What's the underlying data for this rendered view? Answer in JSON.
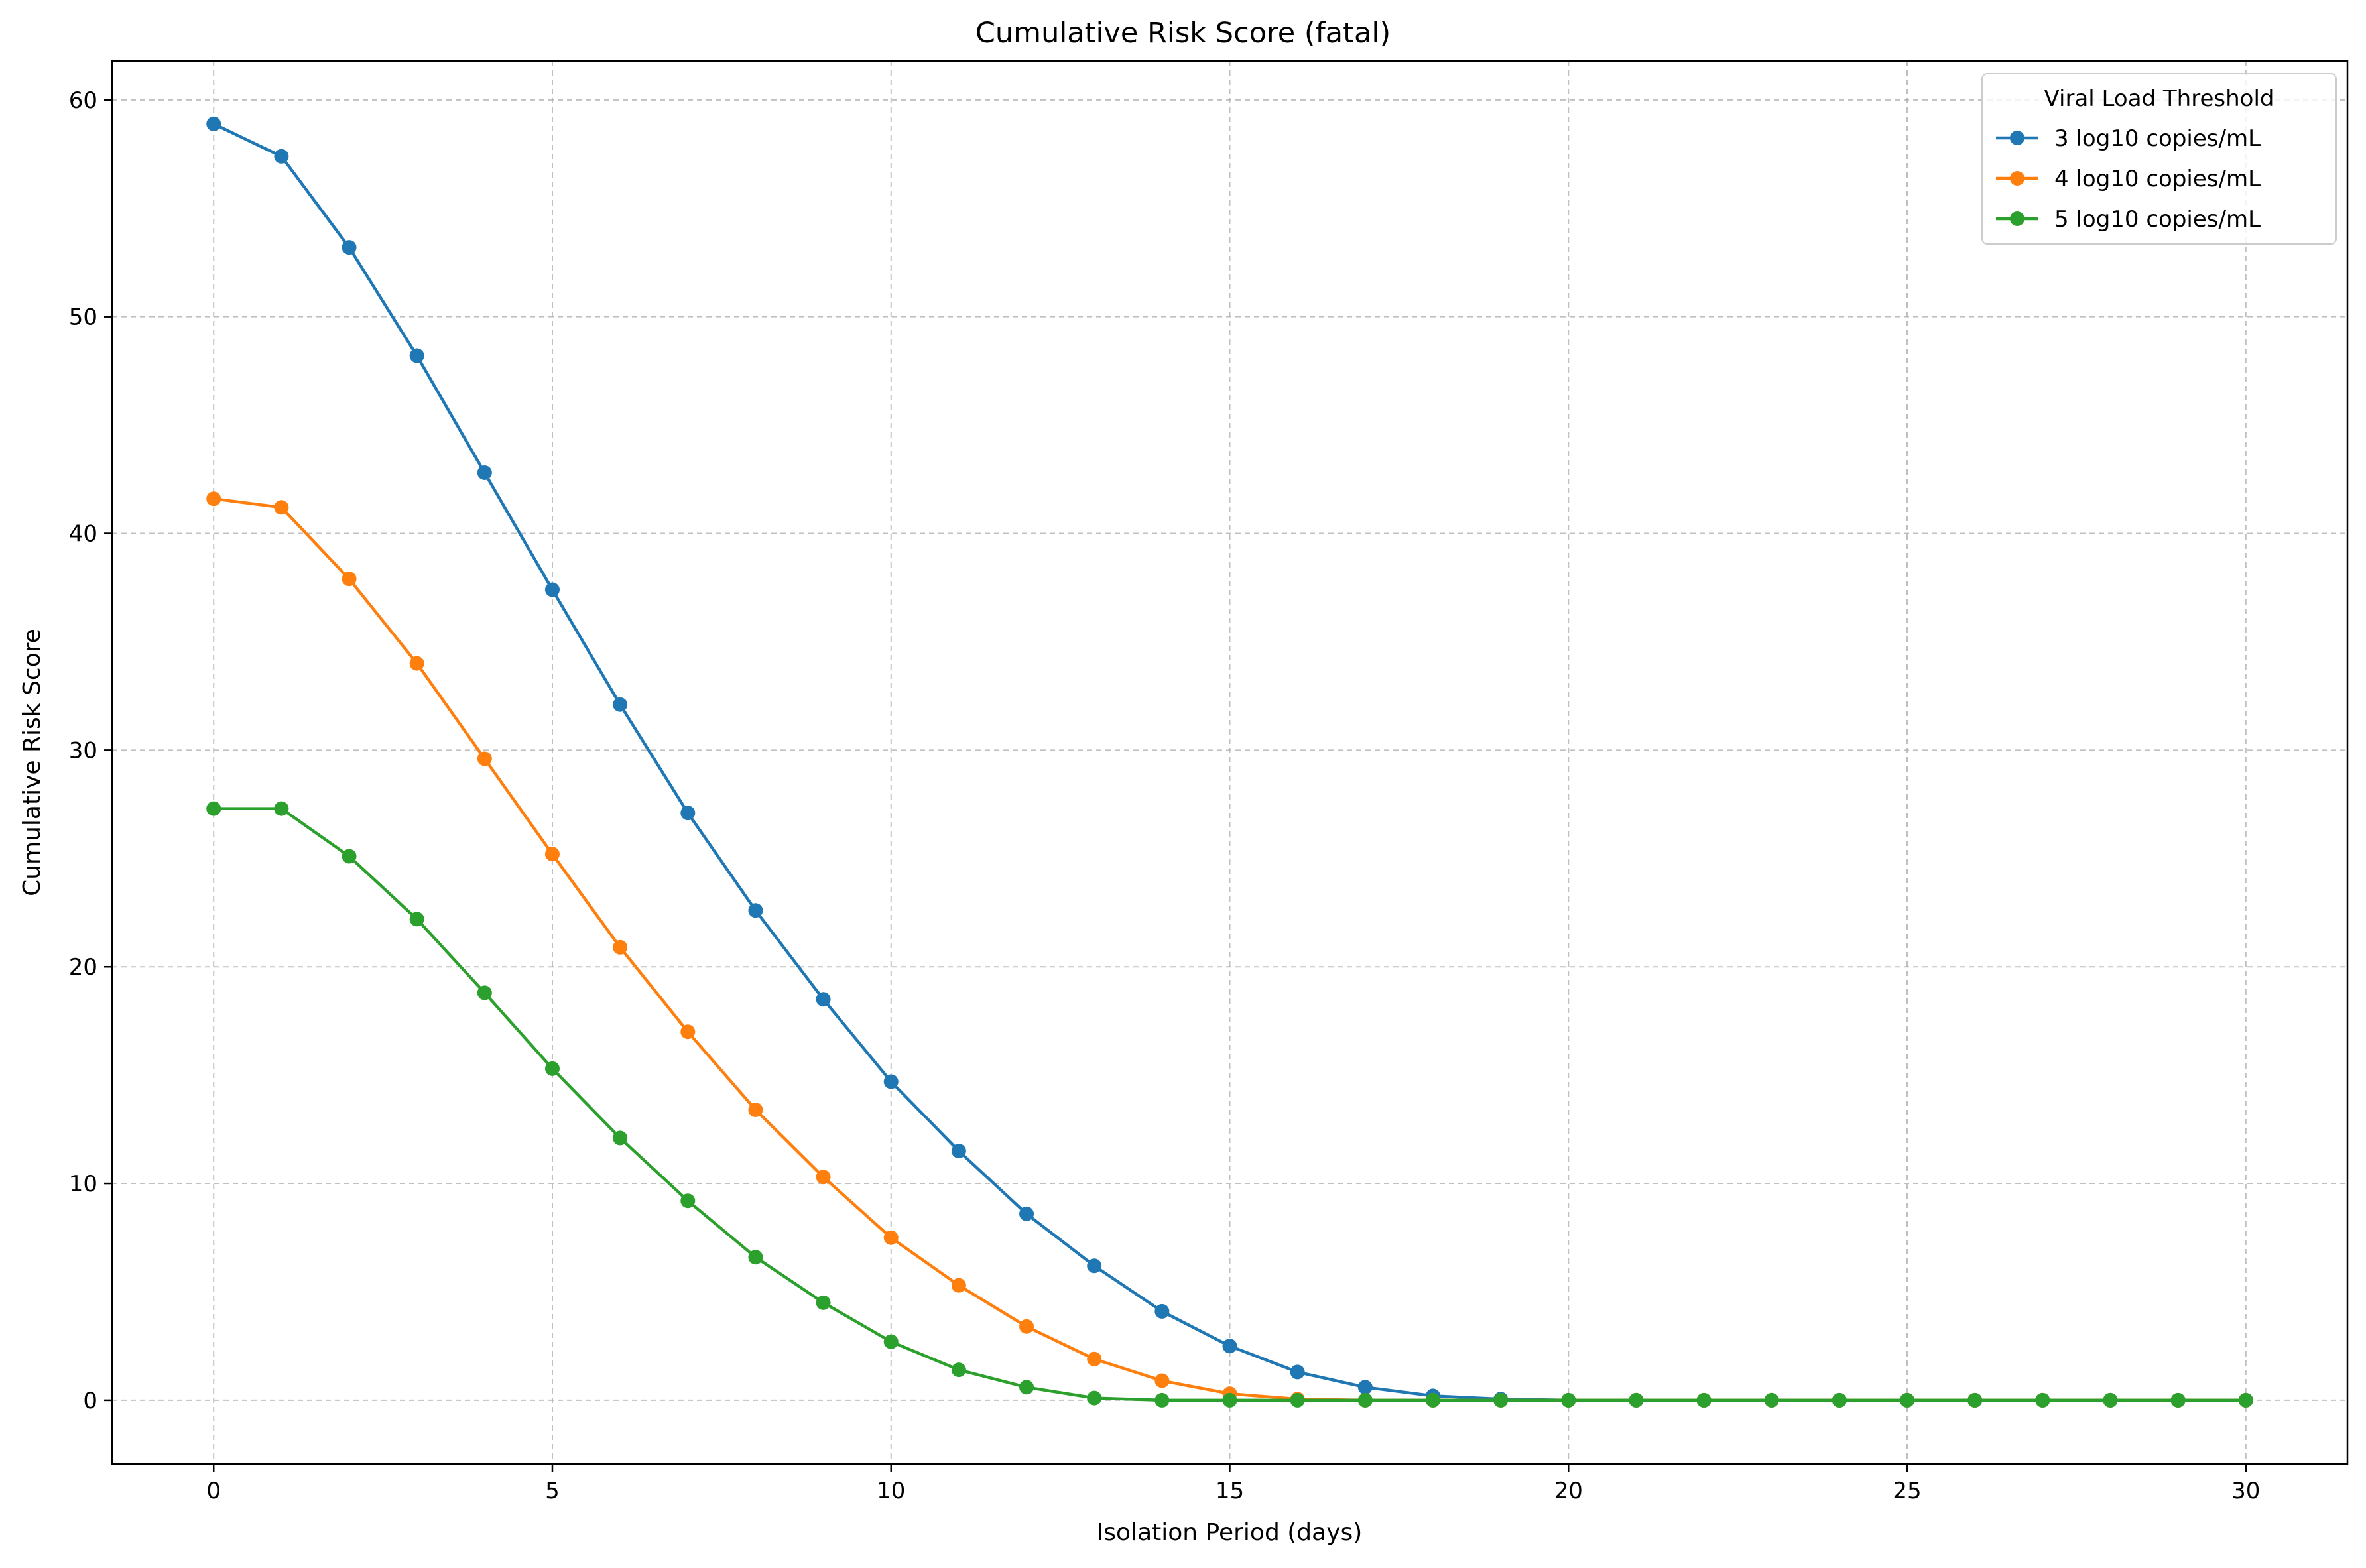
{
  "chart_data": {
    "type": "line",
    "title": "Cumulative Risk Score (fatal)",
    "xlabel": "Isolation Period (days)",
    "ylabel": "Cumulative Risk Score",
    "xlim": [
      -1.5,
      31.5
    ],
    "ylim": [
      -2.94,
      61.8
    ],
    "xticks": [
      0,
      5,
      10,
      15,
      20,
      25,
      30
    ],
    "yticks": [
      0,
      10,
      20,
      30,
      40,
      50,
      60
    ],
    "grid": true,
    "legend": {
      "title": "Viral Load Threshold",
      "placement": "top-right"
    },
    "x": [
      0,
      1,
      2,
      3,
      4,
      5,
      6,
      7,
      8,
      9,
      10,
      11,
      12,
      13,
      14,
      15,
      16,
      17,
      18,
      19,
      20,
      21,
      22,
      23,
      24,
      25,
      26,
      27,
      28,
      29,
      30
    ],
    "series": [
      {
        "name": "3 log10 copies/mL",
        "color": "#1f77b4",
        "values": [
          58.9,
          57.4,
          53.2,
          48.2,
          42.8,
          37.4,
          32.1,
          27.1,
          22.6,
          18.5,
          14.7,
          11.5,
          8.6,
          6.2,
          4.1,
          2.5,
          1.3,
          0.6,
          0.2,
          0.05,
          0,
          0,
          0,
          0,
          0,
          0,
          0,
          0,
          0,
          0,
          0
        ]
      },
      {
        "name": "4 log10 copies/mL",
        "color": "#ff7f0e",
        "values": [
          41.6,
          41.2,
          37.9,
          34.0,
          29.6,
          25.2,
          20.9,
          17.0,
          13.4,
          10.3,
          7.5,
          5.3,
          3.4,
          1.9,
          0.9,
          0.3,
          0.05,
          0,
          0,
          0,
          0,
          0,
          0,
          0,
          0,
          0,
          0,
          0,
          0,
          0,
          0
        ]
      },
      {
        "name": "5 log10 copies/mL",
        "color": "#2ca02c",
        "values": [
          27.3,
          27.3,
          25.1,
          22.2,
          18.8,
          15.3,
          12.1,
          9.2,
          6.6,
          4.5,
          2.7,
          1.4,
          0.6,
          0.1,
          0,
          0,
          0,
          0,
          0,
          0,
          0,
          0,
          0,
          0,
          0,
          0,
          0,
          0,
          0,
          0,
          0
        ]
      }
    ]
  }
}
